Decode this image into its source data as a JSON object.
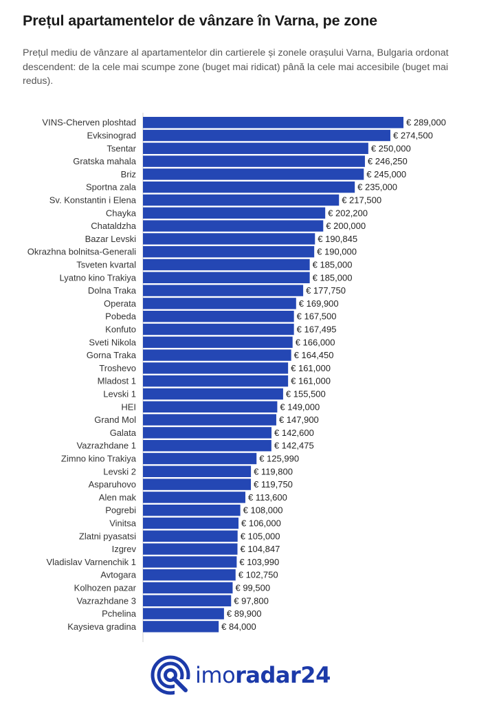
{
  "header": {
    "title": "Prețul apartamentelor de vânzare în Varna, pe zone",
    "subtitle": "Prețul mediu de vânzare al apartamentelor din cartierele și zonele orașului Varna, Bulgaria ordonat descendent: de la cele mai scumpe zone (buget mai ridicat) până la cele mai accesibile (buget mai redus)."
  },
  "brand": {
    "name_light": "imo",
    "name_bold": "radar24",
    "icon": "imoradar24-logo-icon",
    "color": "#1c3aa9"
  },
  "chart_data": {
    "type": "bar",
    "orientation": "horizontal",
    "bar_color": "#2447b4",
    "value_prefix": "€ ",
    "categories": [
      "VINS-Cherven ploshtad",
      "Evksinograd",
      "Tsentar",
      "Gratska mahala",
      "Briz",
      "Sportna zala",
      "Sv. Konstantin i Elena",
      "Chayka",
      "Chataldzha",
      "Bazar Levski",
      "Okrazhna bolnitsa-Generali",
      "Tsveten kvartal",
      "Lyatno kino Trakiya",
      "Dolna Traka",
      "Operata",
      "Pobeda",
      "Konfuto",
      "Sveti Nikola",
      "Gorna Traka",
      "Troshevo",
      "Mladost 1",
      "Levski 1",
      "HEI",
      "Grand Mol",
      "Galata",
      "Vazrazhdane 1",
      "Zimno kino Trakiya",
      "Levski 2",
      "Asparuhovo",
      "Alen mak",
      "Pogrebi",
      "Vinitsa",
      "Zlatni pyasatsi",
      "Izgrev",
      "Vladislav Varnenchik 1",
      "Avtogara",
      "Kolhozen pazar",
      "Vazrazhdane 3",
      "Pchelina",
      "Kaysieva gradina"
    ],
    "values": [
      289000,
      274500,
      250000,
      246250,
      245000,
      235000,
      217500,
      202200,
      200000,
      190845,
      190000,
      185000,
      185000,
      177750,
      169900,
      167500,
      167495,
      166000,
      164450,
      161000,
      161000,
      155500,
      149000,
      147900,
      142600,
      142475,
      125990,
      119800,
      119750,
      113600,
      108000,
      106000,
      105000,
      104847,
      103990,
      102750,
      99500,
      97800,
      89900,
      84000
    ],
    "value_labels": [
      "€ 289,000",
      "€ 274,500",
      "€ 250,000",
      "€ 246,250",
      "€ 245,000",
      "€ 235,000",
      "€ 217,500",
      "€ 202,200",
      "€ 200,000",
      "€ 190,845",
      "€ 190,000",
      "€ 185,000",
      "€ 185,000",
      "€ 177,750",
      "€ 169,900",
      "€ 167,500",
      "€ 167,495",
      "€ 166,000",
      "€ 164,450",
      "€ 161,000",
      "€ 161,000",
      "€ 155,500",
      "€ 149,000",
      "€ 147,900",
      "€ 142,600",
      "€ 142,475",
      "€ 125,990",
      "€ 119,800",
      "€ 119,750",
      "€ 113,600",
      "€ 108,000",
      "€ 106,000",
      "€ 105,000",
      "€ 104,847",
      "€ 103,990",
      "€ 102,750",
      "€ 99,500",
      "€ 97,800",
      "€ 89,900",
      "€ 84,000"
    ],
    "title": "Prețul apartamentelor de vânzare în Varna, pe zone",
    "xlim": [
      0,
      289000
    ],
    "grid": false
  }
}
